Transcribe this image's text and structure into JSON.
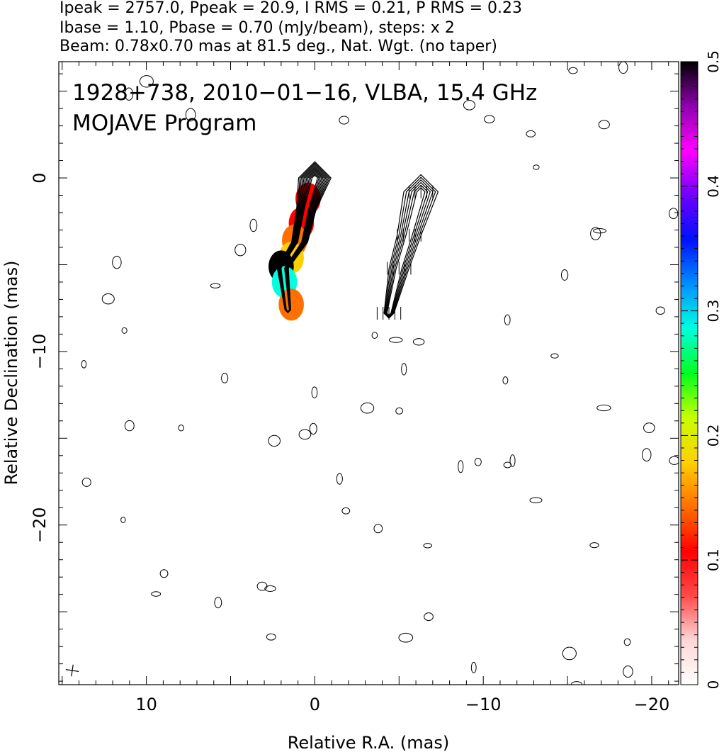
{
  "header": {
    "line1": "Ipeak = 2757.0, Ppeak = 20.9, I RMS = 0.21, P RMS = 0.23",
    "line2": "Ibase = 1.10, Pbase = 0.70 (mJy/beam), steps: x 2",
    "line3": "Beam: 0.78x0.70 mas at 81.5 deg., Nat. Wgt. (no taper)"
  },
  "panel_text": {
    "line1": "1928+738, 2010−01−16, VLBA, 15.4 GHz",
    "line2": "MOJAVE Program"
  },
  "colors": {
    "contour": "#000000",
    "frame": "#000000",
    "colorbar": [
      "#ffffff",
      "#ffd6d6",
      "#ff4a4a",
      "#ff0000",
      "#ff7000",
      "#ffd000",
      "#c8ff00",
      "#00ff20",
      "#00ffe0",
      "#0090ff",
      "#0010ff",
      "#7000ff",
      "#ff00ff",
      "#9000b0",
      "#000000"
    ]
  },
  "chart_data": {
    "type": "heatmap",
    "xlabel": "Relative R.A. (mas)",
    "ylabel": "Relative Declination (mas)",
    "xlim": [
      15.2,
      -21.6
    ],
    "ylim": [
      -29.2,
      6.7
    ],
    "x_ticks": [
      10,
      0,
      -10,
      -20
    ],
    "x_tick_labels": [
      "10",
      "0",
      "−10",
      "−20"
    ],
    "y_ticks": [
      0,
      -10,
      -20
    ],
    "y_tick_labels": [
      "0",
      "−10",
      "−20"
    ],
    "colorbar": {
      "label_min": "0",
      "label_max": "0.5",
      "ticks": [
        0,
        0.1,
        0.2,
        0.3,
        0.4,
        0.5
      ],
      "tick_labels": [
        "0",
        "0.1",
        "0.2",
        "0.3",
        "0.4",
        "0.5"
      ],
      "range": [
        0,
        0.5
      ]
    },
    "total_intensity_contours": {
      "peak_mJy_per_beam": 2757.0,
      "base_mJy_per_beam": 1.1,
      "step_factor": 2,
      "core_position": [
        0,
        0
      ],
      "jet_knots": [
        {
          "x": 0.0,
          "y": 0.0,
          "value": 1.0
        },
        {
          "x": 0.5,
          "y": -1.8,
          "value": 0.32
        },
        {
          "x": 0.9,
          "y": -3.7,
          "value": 0.2
        },
        {
          "x": 1.9,
          "y": -5.2,
          "value": 0.08
        },
        {
          "x": 1.6,
          "y": -7.6,
          "value": 0.01
        }
      ]
    },
    "polarization_contours": {
      "peak_mJy_per_beam": 20.9,
      "base_mJy_per_beam": 0.7,
      "offset_x": -7,
      "knots": [
        {
          "x": -6.3,
          "y": -0.8,
          "value": 1.0
        },
        {
          "x": -5.6,
          "y": -3.3,
          "value": 0.45
        },
        {
          "x": -5.0,
          "y": -5.2,
          "value": 0.3
        },
        {
          "x": -4.4,
          "y": -7.8,
          "value": 0.05
        }
      ]
    },
    "fractional_polarization": [
      {
        "x": 0.4,
        "y": -1.2,
        "value": 0.1
      },
      {
        "x": 0.8,
        "y": -2.6,
        "value": 0.12
      },
      {
        "x": 1.2,
        "y": -3.6,
        "value": 0.15
      },
      {
        "x": 1.4,
        "y": -4.6,
        "value": 0.19
      },
      {
        "x": 2.0,
        "y": -5.1,
        "value": 0.5
      },
      {
        "x": 1.8,
        "y": -6.0,
        "value": 0.28
      },
      {
        "x": 1.4,
        "y": -7.3,
        "value": 0.16
      }
    ],
    "beam": {
      "major_mas": 0.78,
      "minor_mas": 0.7,
      "pa_deg": 81.5,
      "position": "bottom-left"
    }
  }
}
